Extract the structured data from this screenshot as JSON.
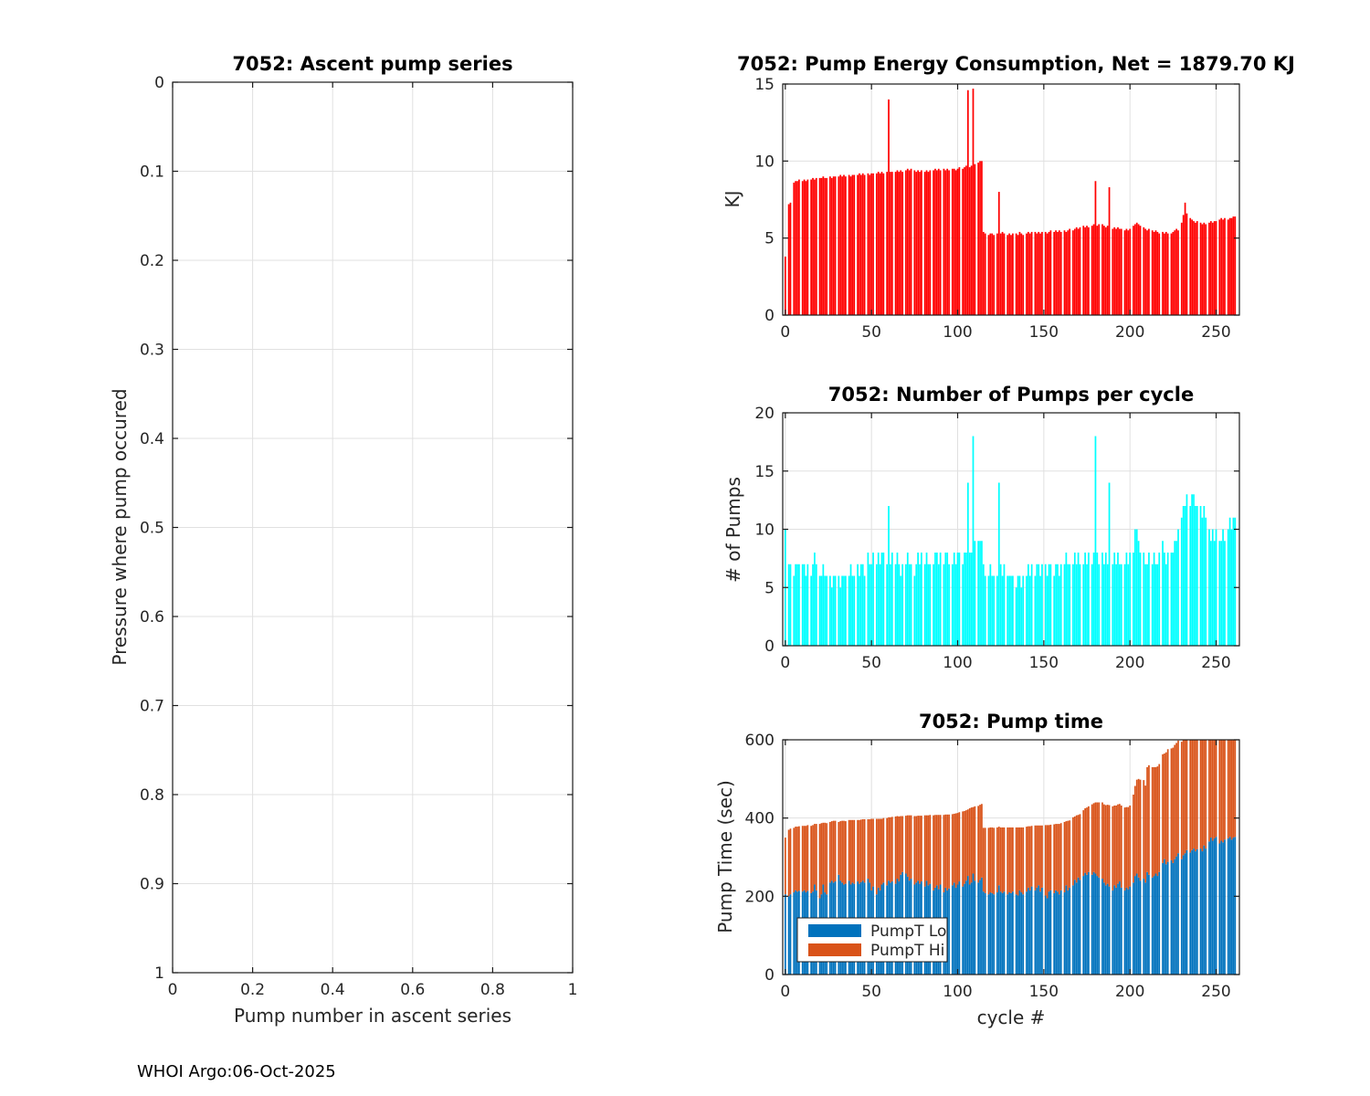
{
  "footer": {
    "text": "WHOI Argo:06-Oct-2025"
  },
  "style": {
    "grid_color": "#e0e0e0",
    "axis_color": "#1a1a1a",
    "tick_text_color": "#262626",
    "red": "#ff0000",
    "cyan": "#00ffff",
    "blue": "#0072bd",
    "orange": "#d95319"
  },
  "chart_data": [
    {
      "id": "ascent",
      "type": "bar",
      "title": "7052: Ascent pump series",
      "xlabel": "Pump number in ascent series",
      "ylabel": "Pressure where pump occured",
      "xlim": [
        0,
        1
      ],
      "ylim": [
        0,
        1
      ],
      "y_reversed": true,
      "grid": true,
      "xticks": [
        0,
        0.2,
        0.4,
        0.6,
        0.8,
        1
      ],
      "xtick_labels": [
        "0",
        "0.2",
        "0.4",
        "0.6",
        "0.8",
        "1"
      ],
      "yticks": [
        0,
        0.1,
        0.2,
        0.3,
        0.4,
        0.5,
        0.6,
        0.7,
        0.8,
        0.9,
        1
      ],
      "ytick_labels": [
        "0",
        "0.1",
        "0.2",
        "0.3",
        "0.4",
        "0.5",
        "0.6",
        "0.7",
        "0.8",
        "0.9",
        "1"
      ],
      "values": []
    },
    {
      "id": "energy",
      "type": "bar",
      "title": "7052: Pump Energy Consumption,  Net = 1879.70 KJ",
      "net_kj": 1879.7,
      "xlabel": "",
      "ylabel": "KJ",
      "xlim": [
        -1.5,
        263.5
      ],
      "ylim": [
        0,
        15
      ],
      "grid": true,
      "xticks": [
        0,
        50,
        100,
        150,
        200,
        250
      ],
      "xtick_labels": [
        "0",
        "50",
        "100",
        "150",
        "200",
        "250"
      ],
      "yticks": [
        0,
        5,
        10,
        15
      ],
      "ytick_labels": [
        "0",
        "5",
        "10",
        "15"
      ],
      "bar_color": "#ff0000",
      "values": [
        3.8,
        0,
        7.2,
        7.3,
        0,
        8.6,
        8.7,
        8.7,
        8.8,
        0,
        8.7,
        8.8,
        8.7,
        8.8,
        0,
        8.8,
        8.9,
        8.8,
        8.9,
        0,
        8.9,
        8.9,
        9.0,
        8.9,
        8.9,
        0,
        9.0,
        8.9,
        9.0,
        9.0,
        0,
        9.0,
        9.1,
        9.0,
        9.1,
        9.0,
        0,
        9.1,
        9.0,
        9.1,
        9.1,
        0,
        9.1,
        9.2,
        9.1,
        9.2,
        9.1,
        0,
        9.2,
        9.1,
        9.2,
        9.2,
        0,
        9.2,
        9.3,
        9.2,
        9.3,
        9.2,
        0,
        9.3,
        14.0,
        9.3,
        9.3,
        0,
        9.3,
        9.4,
        9.3,
        9.4,
        9.3,
        0,
        9.4,
        9.5,
        9.4,
        9.5,
        0,
        9.4,
        9.3,
        9.4,
        9.3,
        9.4,
        0,
        9.3,
        9.4,
        9.3,
        9.4,
        0,
        9.4,
        9.5,
        9.4,
        9.5,
        9.4,
        0,
        9.5,
        9.4,
        9.5,
        9.4,
        0,
        9.5,
        9.5,
        9.4,
        9.5,
        9.6,
        0,
        9.5,
        9.6,
        9.7,
        14.6,
        9.6,
        9.7,
        14.7,
        9.8,
        0,
        9.9,
        10.0,
        10.0,
        5.4,
        5.3,
        0,
        5.2,
        5.3,
        5.3,
        5.2,
        0,
        5.3,
        8.0,
        5.3,
        5.4,
        5.3,
        0,
        5.2,
        5.3,
        5.2,
        5.3,
        0,
        5.3,
        5.2,
        5.4,
        5.3,
        5.2,
        0,
        5.3,
        5.4,
        5.3,
        5.4,
        0,
        5.4,
        5.3,
        5.4,
        5.3,
        5.4,
        0,
        5.4,
        5.3,
        5.4,
        5.5,
        0,
        5.4,
        5.5,
        5.4,
        5.5,
        5.4,
        0,
        5.5,
        5.4,
        5.5,
        5.6,
        0,
        5.5,
        5.6,
        5.7,
        5.6,
        5.7,
        0,
        5.8,
        5.7,
        5.8,
        5.7,
        0,
        5.8,
        5.9,
        8.7,
        5.8,
        5.9,
        0,
        5.9,
        5.8,
        5.7,
        5.8,
        8.3,
        0,
        5.6,
        5.7,
        5.6,
        5.7,
        5.6,
        5.6,
        0,
        5.5,
        5.6,
        5.5,
        5.6,
        0,
        5.8,
        5.9,
        6.0,
        5.9,
        5.8,
        0,
        5.7,
        5.6,
        5.5,
        5.6,
        0,
        5.5,
        5.4,
        5.5,
        5.4,
        5.3,
        0,
        5.4,
        5.3,
        5.4,
        5.3,
        0,
        5.3,
        5.4,
        5.5,
        5.6,
        5.5,
        0,
        6.0,
        6.5,
        7.3,
        6.6,
        0,
        6.3,
        6.2,
        6.1,
        6.0,
        6.1,
        0,
        6.0,
        5.9,
        6.0,
        5.9,
        0,
        6.0,
        6.1,
        6.0,
        6.1,
        6.1,
        0,
        6.2,
        6.3,
        6.2,
        6.3,
        0,
        6.2,
        6.3,
        6.3,
        6.4,
        6.4
      ]
    },
    {
      "id": "pumps",
      "type": "bar",
      "title": "7052: Number of Pumps per cycle",
      "xlabel": "",
      "ylabel": "# of Pumps",
      "xlim": [
        -1.5,
        263.5
      ],
      "ylim": [
        0,
        20
      ],
      "grid": true,
      "xticks": [
        0,
        50,
        100,
        150,
        200,
        250
      ],
      "xtick_labels": [
        "0",
        "50",
        "100",
        "150",
        "200",
        "250"
      ],
      "yticks": [
        0,
        5,
        10,
        15,
        20
      ],
      "ytick_labels": [
        "0",
        "5",
        "10",
        "15",
        "20"
      ],
      "bar_color": "#00ffff",
      "values": [
        10,
        0,
        7,
        7,
        0,
        6,
        7,
        7,
        7,
        0,
        7,
        7,
        6,
        7,
        0,
        6,
        7,
        8,
        7,
        0,
        6,
        6,
        7,
        6,
        6,
        0,
        6,
        5,
        6,
        6,
        0,
        6,
        5,
        6,
        6,
        6,
        0,
        6,
        7,
        6,
        6,
        0,
        7,
        6,
        7,
        7,
        6,
        0,
        8,
        7,
        7,
        8,
        0,
        7,
        8,
        7,
        8,
        8,
        0,
        7,
        12,
        7,
        8,
        0,
        7,
        8,
        7,
        6,
        7,
        0,
        7,
        8,
        7,
        7,
        0,
        6,
        7,
        8,
        7,
        8,
        0,
        7,
        8,
        7,
        7,
        0,
        7,
        8,
        8,
        7,
        8,
        0,
        7,
        8,
        8,
        7,
        0,
        7,
        8,
        7,
        8,
        8,
        0,
        7,
        8,
        8,
        14,
        8,
        8,
        18,
        9,
        0,
        9,
        9,
        9,
        7,
        6,
        0,
        6,
        7,
        6,
        6,
        0,
        6,
        14,
        7,
        6,
        7,
        0,
        6,
        6,
        6,
        6,
        0,
        5,
        6,
        6,
        5,
        6,
        0,
        6,
        7,
        6,
        7,
        0,
        6,
        7,
        7,
        6,
        7,
        0,
        7,
        6,
        7,
        7,
        0,
        6,
        7,
        7,
        6,
        7,
        0,
        7,
        8,
        7,
        7,
        0,
        7,
        8,
        7,
        8,
        7,
        0,
        7,
        8,
        7,
        8,
        0,
        7,
        8,
        18,
        8,
        7,
        0,
        8,
        7,
        8,
        7,
        14,
        0,
        7,
        8,
        7,
        8,
        7,
        7,
        0,
        7,
        8,
        7,
        8,
        0,
        8,
        10,
        10,
        9,
        8,
        0,
        8,
        7,
        7,
        8,
        0,
        7,
        8,
        7,
        7,
        8,
        0,
        9,
        8,
        7,
        8,
        0,
        8,
        8,
        9,
        9,
        10,
        0,
        11,
        12,
        12,
        13,
        0,
        12,
        13,
        13,
        12,
        12,
        0,
        12,
        11,
        12,
        11,
        0,
        10,
        9,
        10,
        9,
        10,
        0,
        9,
        9,
        10,
        9,
        0,
        10,
        11,
        10,
        11,
        11
      ]
    },
    {
      "id": "time",
      "type": "stacked-bar",
      "title": "7052: Pump time",
      "xlabel": "cycle #",
      "ylabel": "Pump Time (sec)",
      "xlim": [
        -1.5,
        263.5
      ],
      "ylim": [
        0,
        600
      ],
      "grid": true,
      "xticks": [
        0,
        50,
        100,
        150,
        200,
        250
      ],
      "xtick_labels": [
        "0",
        "50",
        "100",
        "150",
        "200",
        "250"
      ],
      "yticks": [
        0,
        200,
        400,
        600
      ],
      "ytick_labels": [
        "0",
        "200",
        "400",
        "600"
      ],
      "legend_position": "southwest",
      "series": [
        {
          "name": "PumpT Lo",
          "color": "#0072bd",
          "values": [
            205,
            0,
            200,
            205,
            0,
            210,
            215,
            212,
            214,
            0,
            212,
            215,
            210,
            214,
            0,
            208,
            212,
            230,
            215,
            0,
            195,
            205,
            230,
            210,
            205,
            0,
            235,
            240,
            235,
            238,
            0,
            255,
            240,
            235,
            230,
            232,
            0,
            240,
            230,
            235,
            232,
            0,
            238,
            232,
            236,
            240,
            235,
            0,
            245,
            235,
            215,
            225,
            0,
            205,
            222,
            215,
            230,
            235,
            0,
            228,
            240,
            235,
            238,
            0,
            232,
            245,
            238,
            255,
            262,
            0,
            258,
            250,
            240,
            245,
            0,
            230,
            235,
            240,
            232,
            238,
            0,
            225,
            240,
            228,
            232,
            0,
            215,
            222,
            228,
            218,
            230,
            0,
            210,
            222,
            215,
            220,
            0,
            228,
            235,
            222,
            230,
            238,
            0,
            225,
            232,
            240,
            252,
            230,
            235,
            258,
            240,
            0,
            235,
            242,
            248,
            212,
            208,
            0,
            205,
            210,
            208,
            205,
            0,
            210,
            228,
            212,
            208,
            212,
            0,
            205,
            210,
            208,
            212,
            0,
            205,
            202,
            215,
            210,
            205,
            0,
            212,
            222,
            215,
            225,
            0,
            215,
            222,
            228,
            212,
            222,
            0,
            202,
            195,
            212,
            215,
            0,
            208,
            215,
            212,
            205,
            215,
            0,
            210,
            228,
            215,
            222,
            0,
            228,
            242,
            235,
            248,
            242,
            0,
            252,
            260,
            255,
            262,
            0,
            255,
            262,
            258,
            252,
            248,
            0,
            245,
            235,
            228,
            232,
            225,
            0,
            215,
            228,
            222,
            232,
            238,
            222,
            0,
            215,
            222,
            218,
            225,
            0,
            235,
            252,
            258,
            248,
            240,
            0,
            245,
            235,
            262,
            255,
            0,
            248,
            252,
            258,
            252,
            262,
            0,
            285,
            295,
            282,
            288,
            0,
            292,
            285,
            295,
            302,
            310,
            0,
            295,
            305,
            310,
            318,
            0,
            312,
            318,
            322,
            315,
            320,
            0,
            322,
            315,
            330,
            322,
            0,
            340,
            350,
            342,
            348,
            352,
            0,
            335,
            342,
            338,
            345,
            0,
            348,
            352,
            345,
            350,
            352
          ]
        },
        {
          "name": "PumpT Hi",
          "color": "#d95319",
          "values": [
            145,
            0,
            170,
            168,
            0,
            165,
            163,
            166,
            165,
            0,
            168,
            165,
            170,
            168,
            0,
            172,
            170,
            155,
            170,
            0,
            190,
            182,
            158,
            178,
            182,
            0,
            155,
            152,
            158,
            155,
            0,
            135,
            152,
            158,
            163,
            160,
            0,
            155,
            165,
            160,
            163,
            0,
            157,
            163,
            160,
            157,
            162,
            0,
            152,
            162,
            183,
            173,
            0,
            193,
            176,
            183,
            168,
            165,
            0,
            172,
            162,
            167,
            165,
            0,
            172,
            160,
            166,
            150,
            143,
            0,
            148,
            157,
            167,
            162,
            0,
            175,
            170,
            166,
            174,
            168,
            0,
            182,
            167,
            179,
            176,
            0,
            192,
            186,
            180,
            190,
            178,
            0,
            198,
            187,
            194,
            189,
            0,
            182,
            176,
            190,
            183,
            177,
            0,
            192,
            186,
            180,
            170,
            195,
            192,
            170,
            190,
            0,
            196,
            192,
            188,
            163,
            167,
            0,
            170,
            166,
            168,
            170,
            0,
            166,
            150,
            164,
            168,
            164,
            0,
            171,
            166,
            168,
            164,
            0,
            171,
            174,
            161,
            166,
            171,
            0,
            166,
            157,
            164,
            155,
            0,
            166,
            159,
            153,
            169,
            159,
            0,
            180,
            187,
            170,
            168,
            0,
            176,
            170,
            173,
            180,
            172,
            0,
            180,
            164,
            178,
            172,
            0,
            174,
            162,
            172,
            160,
            168,
            0,
            168,
            165,
            172,
            168,
            0,
            180,
            176,
            182,
            188,
            192,
            0,
            195,
            200,
            205,
            202,
            208,
            0,
            215,
            204,
            210,
            203,
            198,
            210,
            0,
            212,
            206,
            210,
            207,
            0,
            225,
            230,
            240,
            252,
            258,
            0,
            252,
            248,
            268,
            280,
            0,
            282,
            278,
            272,
            280,
            276,
            0,
            278,
            270,
            286,
            288,
            0,
            286,
            295,
            292,
            290,
            288,
            0,
            300,
            300,
            305,
            300,
            0,
            308,
            305,
            300,
            308,
            302,
            0,
            300,
            308,
            295,
            300,
            0,
            285,
            275,
            282,
            278,
            272,
            0,
            290,
            282,
            288,
            280,
            0,
            278,
            272,
            280,
            275,
            272
          ]
        }
      ]
    }
  ]
}
